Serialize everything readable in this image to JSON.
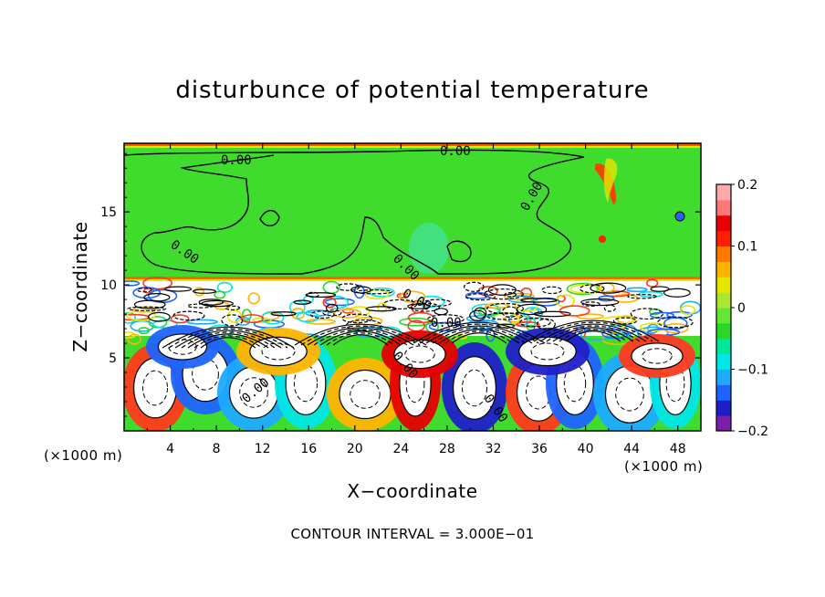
{
  "chart_data": {
    "type": "heatmap",
    "title": "disturbunce of potential temperature",
    "xlabel": "X−coordinate",
    "ylabel": "Z−coordinate",
    "x_unit": "(×1000 m)",
    "z_unit": "(×1000 m)",
    "xlim": [
      0,
      50
    ],
    "ylim": [
      0,
      19.7
    ],
    "x_ticks": [
      4,
      8,
      12,
      16,
      20,
      24,
      28,
      32,
      36,
      40,
      44,
      48
    ],
    "y_ticks": [
      5,
      10,
      15
    ],
    "colorbar": {
      "range": [
        -0.2,
        0.2
      ],
      "ticks": [
        0.2,
        0.1,
        0,
        -0.1,
        -0.2
      ],
      "tick_labels": [
        "0.2",
        "0.1",
        "0",
        "−0.1",
        "−0.2"
      ],
      "colors": [
        "#7a1fa8",
        "#1e1ec8",
        "#1e64ff",
        "#1eaaff",
        "#00e6e6",
        "#00e69b",
        "#28d728",
        "#64e632",
        "#aae632",
        "#e6e600",
        "#ffb400",
        "#ff7800",
        "#ff1e00",
        "#e60000",
        "#ff7878",
        "#ffaaaa"
      ]
    },
    "background_value": 0,
    "tropopause_height": 10.6,
    "contour_labels": [
      "0.00",
      "0.00",
      "0.00",
      "0.00",
      "0.00",
      "0.00",
      "0.00",
      "0.00",
      "0.00",
      "0.00"
    ],
    "contour_interval_text": "CONTOUR INTERVAL = 3.000E−01"
  }
}
